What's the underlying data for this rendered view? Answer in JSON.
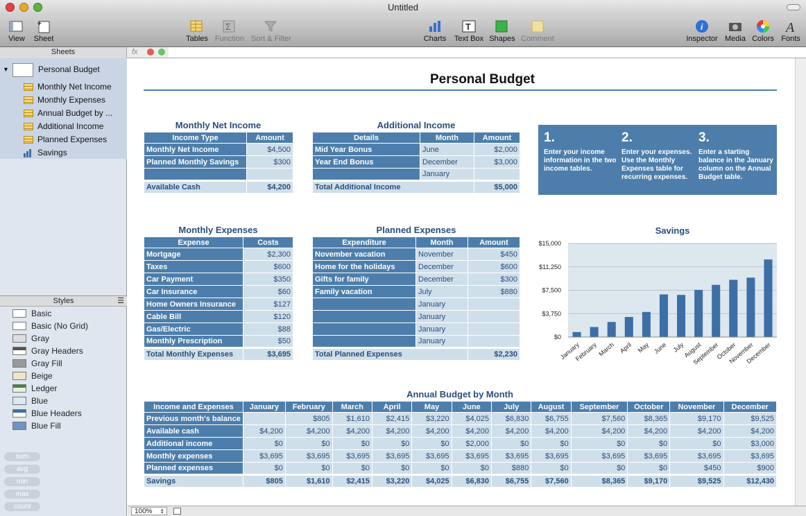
{
  "window": {
    "title": "Untitled"
  },
  "toolbar": {
    "view": "View",
    "sheet": "Sheet",
    "tables": "Tables",
    "function": "Function",
    "sort_filter": "Sort & Filter",
    "charts": "Charts",
    "text_box": "Text Box",
    "shapes": "Shapes",
    "comment": "Comment",
    "inspector": "Inspector",
    "media": "Media",
    "colors": "Colors",
    "fonts": "Fonts"
  },
  "formula": {
    "fx": "fx"
  },
  "sidebar": {
    "header": "Sheets",
    "sheet_name": "Personal Budget",
    "tables": [
      "Monthly Net Income",
      "Monthly Expenses",
      "Annual Budget by ...",
      "Additional Income",
      "Planned Expenses",
      "Savings"
    ]
  },
  "styles": {
    "header": "Styles",
    "items": [
      "Basic",
      "Basic (No Grid)",
      "Gray",
      "Gray Headers",
      "Gray Fill",
      "Beige",
      "Ledger",
      "Blue",
      "Blue Headers",
      "Blue Fill"
    ],
    "functions": [
      "sum",
      "avg",
      "min",
      "max",
      "count"
    ]
  },
  "status": {
    "zoom": "100%"
  },
  "page": {
    "title": "Personal Budget"
  },
  "net_income": {
    "title": "Monthly Net Income",
    "headers": [
      "Income Type",
      "Amount"
    ],
    "rows": [
      [
        "Monthly Net Income",
        "$4,500"
      ],
      [
        "Planned Monthly Savings",
        "$300"
      ],
      [
        "",
        ""
      ]
    ],
    "footer": [
      "Available Cash",
      "$4,200"
    ]
  },
  "additional_income": {
    "title": "Additional Income",
    "headers": [
      "Details",
      "Month",
      "Amount"
    ],
    "rows": [
      [
        "Mid Year Bonus",
        "June",
        "$2,000"
      ],
      [
        "Year End Bonus",
        "December",
        "$3,000"
      ],
      [
        "",
        "January",
        ""
      ]
    ],
    "footer": [
      "Total Additional Income",
      "$5,000"
    ]
  },
  "instructions": [
    {
      "num": "1.",
      "text": "Enter your income information in the two income tables."
    },
    {
      "num": "2.",
      "text": "Enter your expenses. Use the Monthly Expenses table for recurring expenses."
    },
    {
      "num": "3.",
      "text": "Enter a starting balance in the January column on the Annual Budget table."
    }
  ],
  "monthly_expenses": {
    "title": "Monthly Expenses",
    "headers": [
      "Expense",
      "Costs"
    ],
    "rows": [
      [
        "Mortgage",
        "$2,300"
      ],
      [
        "Taxes",
        "$600"
      ],
      [
        "Car Payment",
        "$350"
      ],
      [
        "Car Insurance",
        "$60"
      ],
      [
        "Home Owners Insurance",
        "$127"
      ],
      [
        "Cable Bill",
        "$120"
      ],
      [
        "Gas/Electric",
        "$88"
      ],
      [
        "Monthly Prescription",
        "$50"
      ]
    ],
    "footer": [
      "Total Monthly Expenses",
      "$3,695"
    ]
  },
  "planned_expenses": {
    "title": "Planned Expenses",
    "headers": [
      "Expenditure",
      "Month",
      "Amount"
    ],
    "rows": [
      [
        "November vacation",
        "November",
        "$450"
      ],
      [
        "Home for the holidays",
        "December",
        "$600"
      ],
      [
        "Gifts for family",
        "December",
        "$300"
      ],
      [
        "Family vacation",
        "July",
        "$880"
      ],
      [
        "",
        "January",
        ""
      ],
      [
        "",
        "January",
        ""
      ],
      [
        "",
        "January",
        ""
      ],
      [
        "",
        "January",
        ""
      ]
    ],
    "footer": [
      "Total Planned Expenses",
      "$2,230"
    ]
  },
  "chart_data": {
    "type": "bar",
    "title": "Savings",
    "categories": [
      "January",
      "February",
      "March",
      "April",
      "May",
      "June",
      "July",
      "August",
      "September",
      "October",
      "November",
      "December"
    ],
    "values": [
      805,
      1610,
      2415,
      3220,
      4025,
      6830,
      6755,
      7560,
      8365,
      9170,
      9525,
      12430
    ],
    "ylim": [
      0,
      15000
    ],
    "yticks": [
      "$15,000",
      "$11,250",
      "$7,500",
      "$3,750",
      "$0"
    ],
    "ytick_values": [
      15000,
      11250,
      7500,
      3750,
      0
    ],
    "color": "#3d6fa6"
  },
  "annual": {
    "title": "Annual Budget by Month",
    "headers": [
      "Income and Expenses",
      "January",
      "February",
      "March",
      "April",
      "May",
      "June",
      "July",
      "August",
      "September",
      "October",
      "November",
      "December"
    ],
    "rows": [
      [
        "Previous month's balance",
        "",
        "$805",
        "$1,610",
        "$2,415",
        "$3,220",
        "$4,025",
        "$6,830",
        "$6,755",
        "$7,560",
        "$8,365",
        "$9,170",
        "$9,525"
      ],
      [
        "Available cash",
        "$4,200",
        "$4,200",
        "$4,200",
        "$4,200",
        "$4,200",
        "$4,200",
        "$4,200",
        "$4,200",
        "$4,200",
        "$4,200",
        "$4,200",
        "$4,200"
      ],
      [
        "Additional income",
        "$0",
        "$0",
        "$0",
        "$0",
        "$0",
        "$2,000",
        "$0",
        "$0",
        "$0",
        "$0",
        "$0",
        "$3,000"
      ],
      [
        "Monthly expenses",
        "$3,695",
        "$3,695",
        "$3,695",
        "$3,695",
        "$3,695",
        "$3,695",
        "$3,695",
        "$3,695",
        "$3,695",
        "$3,695",
        "$3,695",
        "$3,695"
      ],
      [
        "Planned expenses",
        "$0",
        "$0",
        "$0",
        "$0",
        "$0",
        "$0",
        "$880",
        "$0",
        "$0",
        "$0",
        "$450",
        "$900"
      ]
    ],
    "footer": [
      "Savings",
      "$805",
      "$1,610",
      "$2,415",
      "$3,220",
      "$4,025",
      "$6,830",
      "$6,755",
      "$7,560",
      "$8,365",
      "$9,170",
      "$9,525",
      "$12,430"
    ]
  },
  "colors": {
    "header_blue": "#4d7eab",
    "cell_light": "#cfdfea",
    "title_blue": "#2a4d7a"
  }
}
